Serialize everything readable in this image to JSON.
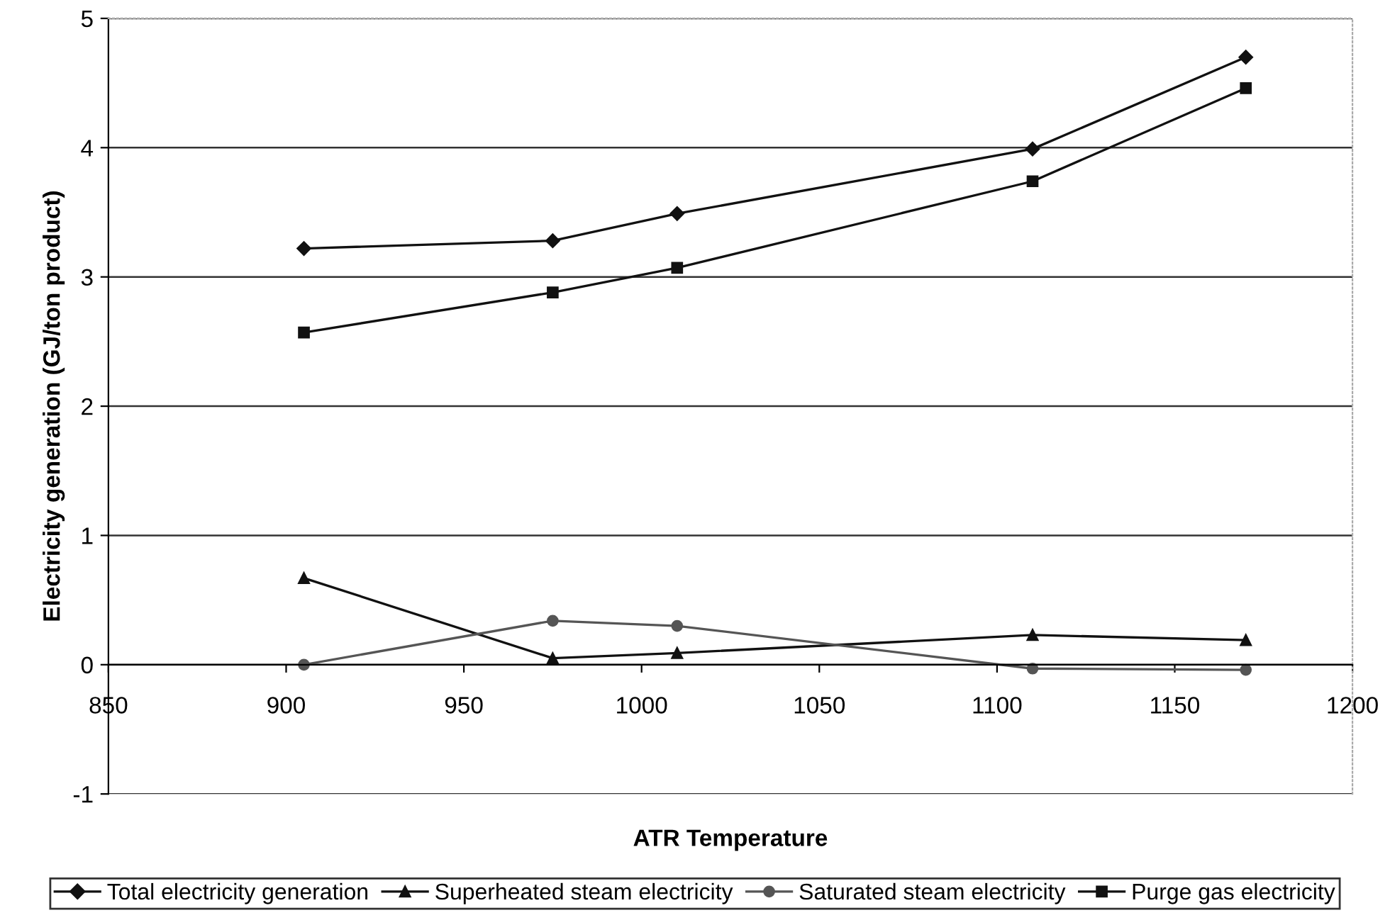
{
  "chart_data": {
    "type": "line",
    "xlabel": "ATR Temperature",
    "ylabel": "Electricity generation (GJ/ton product)",
    "x": [
      905,
      975,
      1010,
      1110,
      1170
    ],
    "series": [
      {
        "name": "Total electricity generation",
        "color": "#111111",
        "marker": "diamond",
        "values": [
          3.22,
          3.28,
          3.49,
          3.99,
          4.7
        ]
      },
      {
        "name": "Superheated steam electricity",
        "color": "#111111",
        "marker": "triangle",
        "values": [
          0.67,
          0.05,
          0.09,
          0.23,
          0.19
        ]
      },
      {
        "name": "Saturated steam electricity",
        "color": "#555555",
        "marker": "circle",
        "values": [
          0,
          0.34,
          0.3,
          -0.03,
          -0.04
        ]
      },
      {
        "name": "Purge gas electricity",
        "color": "#111111",
        "marker": "square",
        "values": [
          2.57,
          2.88,
          3.07,
          3.74,
          4.46
        ]
      }
    ],
    "xlim": [
      850,
      1200
    ],
    "xticks": [
      850,
      900,
      950,
      1000,
      1050,
      1100,
      1150,
      1200
    ],
    "ylim": [
      -1,
      5
    ],
    "yticks": [
      -1,
      0,
      1,
      2,
      3,
      4,
      5
    ],
    "grid": "y",
    "legend": "bottom",
    "line_style": "solid"
  }
}
